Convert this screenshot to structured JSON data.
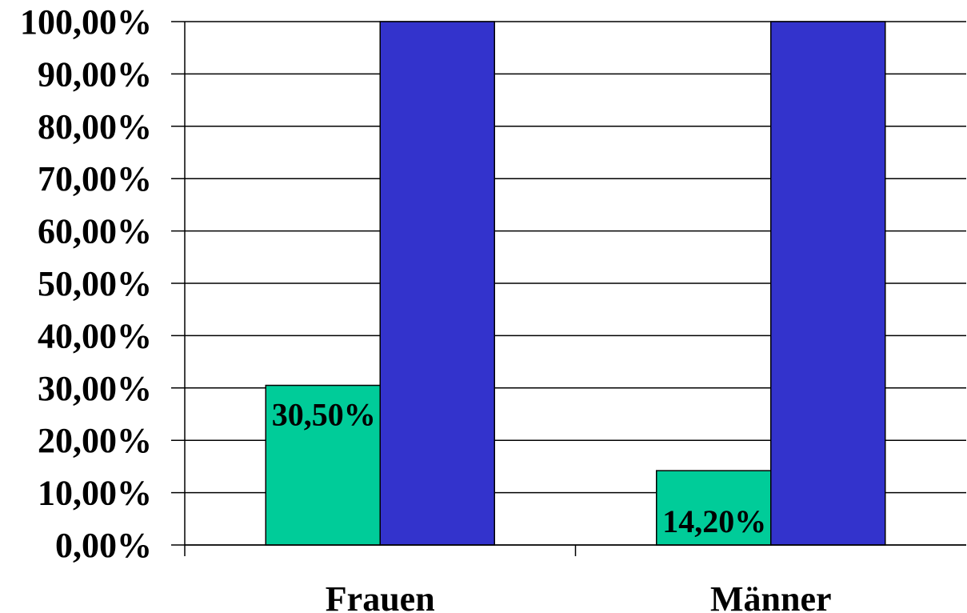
{
  "chart_data": {
    "type": "bar",
    "categories": [
      "Frauen",
      "Männer"
    ],
    "series": [
      {
        "values": [
          30.5,
          14.2
        ],
        "color": "#00CC99",
        "data_labels": [
          "30,50%",
          "14,20%"
        ]
      },
      {
        "values": [
          100,
          100
        ],
        "color": "#3333CC"
      }
    ],
    "ylim": [
      0,
      100
    ],
    "ytick_values": [
      0,
      10,
      20,
      30,
      40,
      50,
      60,
      70,
      80,
      90,
      100
    ],
    "ytick_labels": [
      "0,00%",
      "10,00%",
      "20,00%",
      "30,00%",
      "40,00%",
      "50,00%",
      "60,00%",
      "70,00%",
      "80,00%",
      "90,00%",
      "100,00%"
    ],
    "grid": true,
    "legend": "none"
  }
}
